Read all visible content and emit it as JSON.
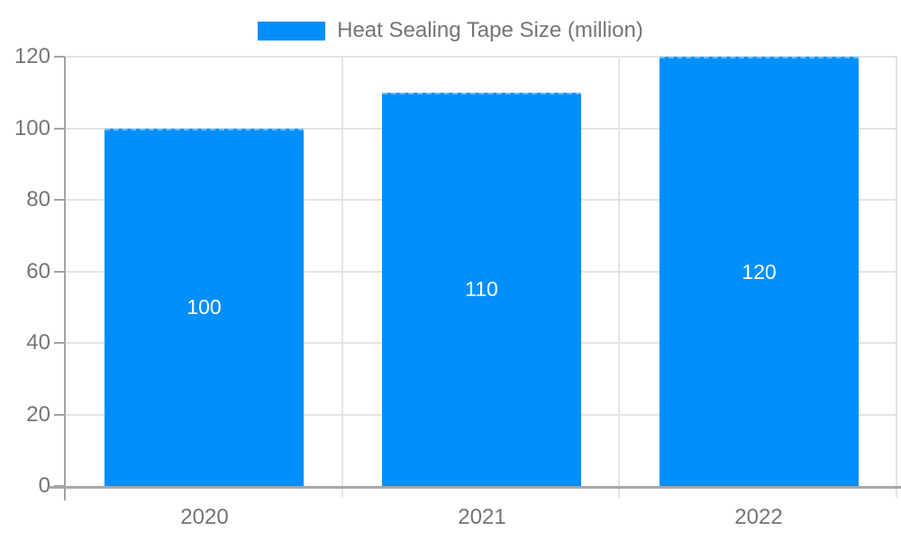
{
  "legend": {
    "label": "Heat Sealing Tape Size (million)"
  },
  "colors": {
    "bar": "#008FFB",
    "grid": "#e4e4e4",
    "axis": "#a3a3a3",
    "text": "#757575",
    "bar_label": "#ffffff",
    "background": "#ffffff"
  },
  "chart_data": {
    "type": "bar",
    "title": "Heat Sealing Tape Size (million)",
    "series_name": "Heat Sealing Tape Size (million)",
    "categories": [
      "2020",
      "2021",
      "2022"
    ],
    "values": [
      100,
      110,
      120
    ],
    "data_labels": [
      "100",
      "110",
      "120"
    ],
    "xlabel": "",
    "ylabel": "",
    "ylim": [
      0,
      120
    ],
    "yticks": [
      0,
      20,
      40,
      60,
      80,
      100,
      120
    ],
    "ytick_labels": [
      "0",
      "20",
      "40",
      "60",
      "80",
      "100",
      "120"
    ],
    "grid": "horizontal + vertical category boundaries",
    "legend_position": "top-center",
    "data_label_position": "inside-center",
    "bar_color": "#008FFB"
  }
}
